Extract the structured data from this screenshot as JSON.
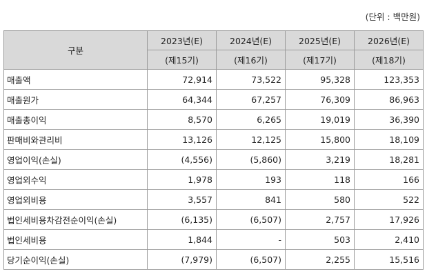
{
  "unit_note": "(단위 : 백만원)",
  "header": {
    "category": "구분",
    "years": [
      "2023년(E)",
      "2024년(E)",
      "2025년(E)",
      "2026년(E)"
    ],
    "terms": [
      "(제15기)",
      "(제16기)",
      "(제17기)",
      "(제18기)"
    ]
  },
  "rows": [
    {
      "label": "매출액",
      "values": [
        "72,914",
        "73,522",
        "95,328",
        "123,353"
      ]
    },
    {
      "label": "매출원가",
      "values": [
        "64,344",
        "67,257",
        "76,309",
        "86,963"
      ]
    },
    {
      "label": "매출총이익",
      "values": [
        "8,570",
        "6,265",
        "19,019",
        "36,390"
      ]
    },
    {
      "label": "판매비와관리비",
      "values": [
        "13,126",
        "12,125",
        "15,800",
        "18,109"
      ]
    },
    {
      "label": "영업이익(손실)",
      "values": [
        "(4,556)",
        "(5,860)",
        "3,219",
        "18,281"
      ]
    },
    {
      "label": "영업외수익",
      "values": [
        "1,978",
        "193",
        "118",
        "166"
      ]
    },
    {
      "label": "영업외비용",
      "values": [
        "3,557",
        "841",
        "580",
        "522"
      ]
    },
    {
      "label": "법인세비용차감전순이익(손실)",
      "values": [
        "(6,135)",
        "(6,507)",
        "2,757",
        "17,926"
      ]
    },
    {
      "label": "법인세비용",
      "values": [
        "1,844",
        "-",
        "503",
        "2,410"
      ]
    },
    {
      "label": "당기순이익(손실)",
      "values": [
        "(7,979)",
        "(6,507)",
        "2,255",
        "15,516"
      ]
    }
  ]
}
